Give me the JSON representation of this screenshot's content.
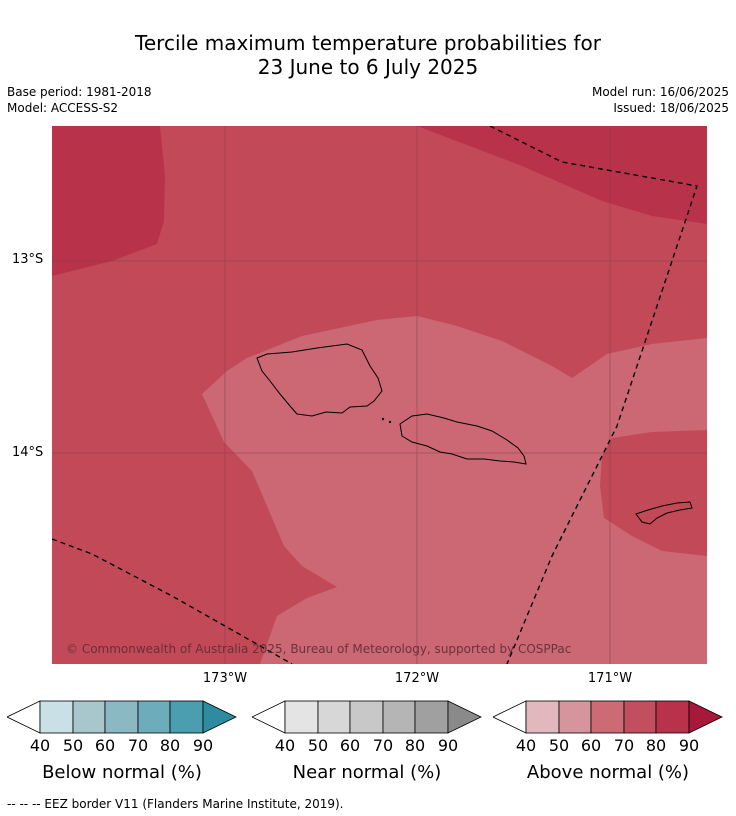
{
  "title_line1": "Tercile maximum temperature probabilities for",
  "title_line2": "23 June to 6 July 2025",
  "base_period": "Base period: 1981-2018",
  "model": "Model: ACCESS-S2",
  "model_run": "Model run: 16/06/2025",
  "issued": "Issued: 18/06/2025",
  "lat_labels": [
    "13°S",
    "14°S"
  ],
  "lon_labels": [
    "173°W",
    "172°W",
    "171°W"
  ],
  "copyright": "© Commonwealth of Australia 2025, Bureau of Meteorology, supported by COSPPac",
  "legends": [
    {
      "title": "Below normal (%)",
      "ticks": [
        "40",
        "50",
        "60",
        "70",
        "80",
        "90"
      ],
      "colors": [
        "#ffffff",
        "#c8e0e6",
        "#a7c7cd",
        "#8ab8c3",
        "#6dadbb",
        "#4a9eb0",
        "#2e8ba0"
      ]
    },
    {
      "title": "Near normal (%)",
      "ticks": [
        "40",
        "50",
        "60",
        "70",
        "80",
        "90"
      ],
      "colors": [
        "#ffffff",
        "#e4e4e4",
        "#d7d7d7",
        "#c8c8c8",
        "#b5b5b5",
        "#a0a0a0",
        "#8a8a8a"
      ]
    },
    {
      "title": "Above normal (%)",
      "ticks": [
        "40",
        "50",
        "60",
        "70",
        "80",
        "90"
      ],
      "colors": [
        "#ffffff",
        "#e3b8bd",
        "#d6959c",
        "#cc6b74",
        "#c24f5e",
        "#b8334a",
        "#a8183a"
      ]
    }
  ],
  "footnote": "-- -- -- EEZ border V11 (Flanders Marine Institute, 2019)."
}
